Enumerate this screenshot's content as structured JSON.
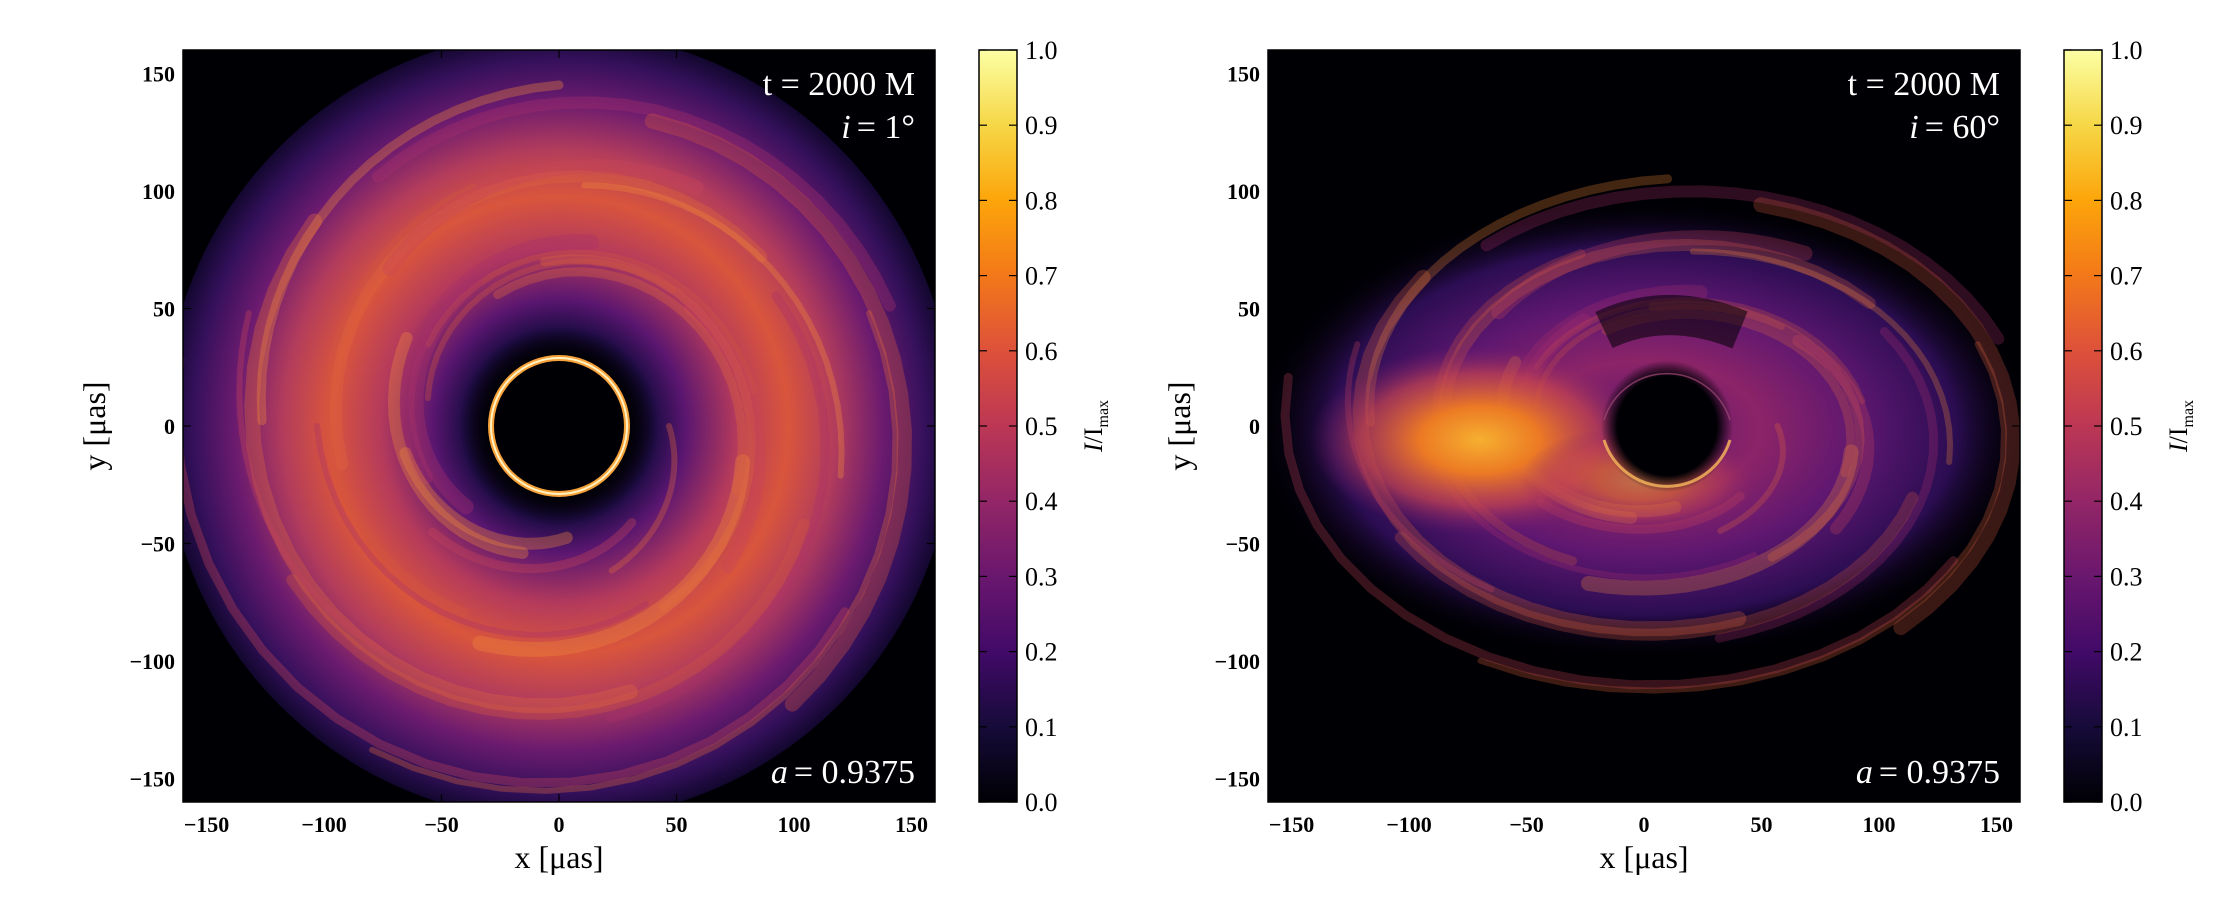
{
  "colors": {
    "cmap": "inferno",
    "annotation_text": "#ffffff",
    "axis_text": "#000000"
  },
  "chart_data": [
    {
      "type": "heatmap",
      "xlabel": "x [μas]",
      "ylabel": "y [μas]",
      "xlim": [
        -160,
        160
      ],
      "ylim": [
        -160,
        160
      ],
      "xticks": [
        -150,
        -100,
        -50,
        0,
        50,
        100,
        150
      ],
      "yticks": [
        -150,
        -100,
        -50,
        0,
        50,
        100,
        150
      ],
      "xtick_labels": [
        "−150",
        "−100",
        "−50",
        "0",
        "50",
        "100",
        "150"
      ],
      "ytick_labels": [
        "−150",
        "−100",
        "−50",
        "0",
        "50",
        "100",
        "150"
      ],
      "annotation_time": "t = 2000 M",
      "annotation_incl_symbol": "i",
      "annotation_incl_value": "= 1°",
      "annotation_spin_symbol": "a",
      "annotation_spin_value": "= 0.9375",
      "inclination_deg": 1,
      "colorbar": {
        "label_I": "I",
        "label_rest": "/I",
        "label_sub": "max",
        "range": [
          0.0,
          1.0
        ],
        "ticks": [
          0.0,
          0.1,
          0.2,
          0.3,
          0.4,
          0.5,
          0.6,
          0.7,
          0.8,
          0.9,
          1.0
        ],
        "tick_labels": [
          "0.0",
          "0.1",
          "0.2",
          "0.3",
          "0.4",
          "0.5",
          "0.6",
          "0.7",
          "0.8",
          "0.9",
          "1.0"
        ]
      },
      "features": {
        "shadow_center": [
          0,
          0
        ],
        "shadow_radius": 27,
        "photon_ring_radius": 29,
        "photon_ring_intensity": 0.95,
        "disk_peak_intensity": 0.65
      }
    },
    {
      "type": "heatmap",
      "xlabel": "x [μas]",
      "ylabel": "y [μas]",
      "xlim": [
        -160,
        160
      ],
      "ylim": [
        -160,
        160
      ],
      "xticks": [
        -150,
        -100,
        -50,
        0,
        50,
        100,
        150
      ],
      "yticks": [
        -150,
        -100,
        -50,
        0,
        50,
        100,
        150
      ],
      "xtick_labels": [
        "−150",
        "−100",
        "−50",
        "0",
        "50",
        "100",
        "150"
      ],
      "ytick_labels": [
        "−150",
        "−100",
        "−50",
        "0",
        "50",
        "100",
        "150"
      ],
      "annotation_time": "t = 2000 M",
      "annotation_incl_symbol": "i",
      "annotation_incl_value": "= 60°",
      "annotation_spin_symbol": "a",
      "annotation_spin_value": "= 0.9375",
      "inclination_deg": 60,
      "colorbar": {
        "label_I": "I",
        "label_rest": "/I",
        "label_sub": "max",
        "range": [
          0.0,
          1.0
        ],
        "ticks": [
          0.0,
          0.1,
          0.2,
          0.3,
          0.4,
          0.5,
          0.6,
          0.7,
          0.8,
          0.9,
          1.0
        ],
        "tick_labels": [
          "0.0",
          "0.1",
          "0.2",
          "0.3",
          "0.4",
          "0.5",
          "0.6",
          "0.7",
          "0.8",
          "0.9",
          "1.0"
        ]
      },
      "features": {
        "shadow_center": [
          10,
          0
        ],
        "shadow_radius": 28,
        "bright_region_center": [
          -70,
          -5
        ],
        "bright_region_intensity": 0.85
      }
    }
  ]
}
